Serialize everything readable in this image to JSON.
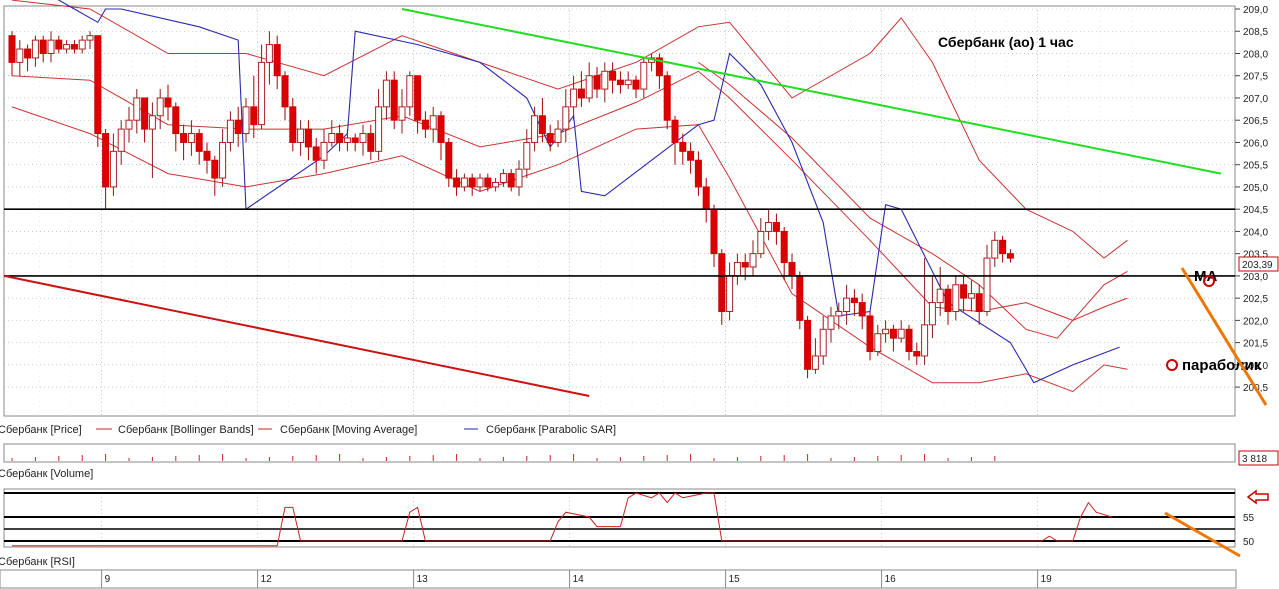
{
  "chart_data": {
    "type": "candlestick",
    "title": "Сбербанк (ао)    1 час",
    "price_panel": {
      "ylim": [
        200.3,
        209.0
      ],
      "y_ticks": [
        "209,0",
        "208,5",
        "208,0",
        "207,5",
        "207,0",
        "206,5",
        "206,0",
        "205,5",
        "205,0",
        "204,5",
        "204,0",
        "203,5",
        "203,0",
        "202,5",
        "202,0",
        "201,5",
        "201,0",
        "200,5"
      ],
      "last_price_label": "203,39",
      "legend": [
        {
          "name": "Сбербанк [Price]",
          "color": "#cc0000"
        },
        {
          "name": "Сбербанк [Bollinger Bands]",
          "color": "#cc2222"
        },
        {
          "name": "Сбербанк [Moving Average]",
          "color": "#cc2222"
        },
        {
          "name": "Сбербанк [Parabolic SAR]",
          "color": "#2222aa"
        }
      ]
    },
    "x_ticks": [
      {
        "label": "9",
        "bar": 12
      },
      {
        "label": "12",
        "bar": 32
      },
      {
        "label": "13",
        "bar": 52
      },
      {
        "label": "14",
        "bar": 72
      },
      {
        "label": "15",
        "bar": 92
      },
      {
        "label": "16",
        "bar": 112
      },
      {
        "label": "19",
        "bar": 132
      }
    ],
    "candles": [
      [
        208.4,
        207.8,
        208.5,
        207.5
      ],
      [
        207.8,
        208.1,
        208.3,
        207.5
      ],
      [
        208.1,
        207.9,
        208.2,
        207.6
      ],
      [
        207.9,
        208.3,
        208.4,
        207.7
      ],
      [
        208.3,
        208.0,
        208.4,
        207.8
      ],
      [
        208.0,
        208.3,
        208.5,
        207.8
      ],
      [
        208.3,
        208.1,
        208.4,
        208.0
      ],
      [
        208.1,
        208.2,
        208.3,
        208.0
      ],
      [
        208.2,
        208.1,
        208.3,
        208.0
      ],
      [
        208.1,
        208.3,
        208.4,
        208.0
      ],
      [
        208.3,
        208.4,
        208.5,
        208.1
      ],
      [
        208.4,
        206.2,
        208.4,
        205.9
      ],
      [
        206.2,
        205.0,
        206.3,
        204.5
      ],
      [
        205.0,
        205.8,
        206.2,
        204.8
      ],
      [
        205.8,
        206.3,
        206.5,
        205.5
      ],
      [
        206.3,
        206.5,
        206.8,
        206.0
      ],
      [
        206.5,
        207.0,
        207.2,
        206.2
      ],
      [
        207.0,
        206.3,
        207.0,
        206.0
      ],
      [
        206.3,
        206.6,
        206.9,
        205.2
      ],
      [
        206.6,
        207.0,
        207.2,
        206.3
      ],
      [
        207.0,
        206.8,
        207.3,
        206.5
      ],
      [
        206.8,
        206.2,
        206.9,
        205.8
      ],
      [
        206.2,
        206.0,
        206.4,
        205.6
      ],
      [
        206.0,
        206.2,
        206.5,
        205.7
      ],
      [
        206.2,
        205.8,
        206.3,
        205.5
      ],
      [
        205.8,
        205.6,
        206.0,
        205.3
      ],
      [
        205.6,
        205.2,
        205.7,
        204.8
      ],
      [
        205.2,
        206.0,
        206.3,
        205.0
      ],
      [
        206.0,
        206.5,
        206.7,
        205.8
      ],
      [
        206.5,
        206.2,
        206.8,
        205.9
      ],
      [
        206.2,
        206.8,
        207.0,
        206.0
      ],
      [
        206.8,
        206.4,
        207.5,
        206.1
      ],
      [
        206.4,
        207.8,
        208.2,
        206.3
      ],
      [
        207.8,
        208.2,
        208.5,
        207.3
      ],
      [
        208.2,
        207.5,
        208.4,
        207.2
      ],
      [
        207.5,
        206.8,
        207.6,
        206.5
      ],
      [
        206.8,
        206.0,
        207.0,
        205.8
      ],
      [
        206.0,
        206.3,
        206.5,
        205.7
      ],
      [
        206.3,
        205.9,
        206.5,
        205.6
      ],
      [
        205.9,
        205.6,
        206.1,
        205.3
      ],
      [
        205.6,
        206.0,
        206.3,
        205.4
      ],
      [
        206.0,
        206.2,
        206.5,
        205.9
      ],
      [
        206.2,
        206.0,
        206.4,
        205.8
      ],
      [
        206.0,
        206.1,
        206.3,
        205.8
      ],
      [
        206.1,
        206.0,
        206.2,
        205.8
      ],
      [
        206.0,
        206.2,
        206.4,
        205.7
      ],
      [
        206.2,
        205.8,
        206.4,
        205.6
      ],
      [
        205.8,
        206.8,
        207.2,
        205.6
      ],
      [
        206.8,
        207.4,
        207.6,
        206.5
      ],
      [
        207.4,
        206.5,
        207.6,
        206.3
      ],
      [
        206.5,
        206.8,
        207.2,
        206.2
      ],
      [
        206.8,
        207.5,
        207.6,
        206.6
      ],
      [
        207.5,
        206.5,
        207.5,
        206.2
      ],
      [
        206.5,
        206.3,
        206.7,
        206.1
      ],
      [
        206.3,
        206.6,
        206.8,
        206.0
      ],
      [
        206.6,
        206.0,
        206.7,
        205.6
      ],
      [
        206.0,
        205.2,
        206.1,
        205.0
      ],
      [
        205.2,
        205.0,
        205.4,
        204.8
      ],
      [
        205.0,
        205.2,
        205.3,
        204.9
      ],
      [
        205.2,
        205.0,
        205.3,
        204.8
      ],
      [
        205.0,
        205.2,
        205.3,
        204.9
      ],
      [
        205.2,
        205.0,
        205.3,
        204.9
      ],
      [
        205.0,
        205.1,
        205.2,
        204.9
      ],
      [
        205.1,
        205.3,
        205.4,
        205.0
      ],
      [
        205.3,
        205.0,
        205.4,
        204.9
      ],
      [
        205.0,
        205.4,
        205.6,
        204.8
      ],
      [
        205.4,
        206.0,
        206.3,
        205.2
      ],
      [
        206.0,
        206.6,
        206.8,
        205.8
      ],
      [
        206.6,
        206.2,
        207.0,
        206.0
      ],
      [
        206.2,
        206.0,
        206.4,
        205.8
      ],
      [
        206.0,
        206.3,
        206.5,
        205.9
      ],
      [
        206.3,
        206.8,
        207.2,
        206.0
      ],
      [
        206.8,
        207.2,
        207.5,
        206.5
      ],
      [
        207.2,
        207.0,
        207.6,
        206.8
      ],
      [
        207.0,
        207.5,
        207.8,
        206.9
      ],
      [
        207.5,
        207.2,
        207.7,
        207.0
      ],
      [
        207.2,
        207.6,
        207.8,
        206.9
      ],
      [
        207.6,
        207.4,
        207.8,
        207.1
      ],
      [
        207.4,
        207.3,
        207.6,
        207.1
      ],
      [
        207.3,
        207.4,
        207.6,
        207.2
      ],
      [
        207.4,
        207.2,
        207.5,
        207.0
      ],
      [
        207.2,
        207.8,
        207.9,
        207.0
      ],
      [
        207.8,
        207.9,
        208.0,
        207.6
      ],
      [
        207.9,
        207.5,
        208.0,
        207.2
      ],
      [
        207.5,
        206.5,
        207.6,
        206.3
      ],
      [
        206.5,
        206.0,
        206.6,
        205.5
      ],
      [
        206.0,
        205.8,
        206.2,
        205.5
      ],
      [
        205.8,
        205.6,
        206.0,
        205.3
      ],
      [
        205.6,
        205.0,
        205.8,
        204.8
      ],
      [
        205.0,
        204.5,
        205.2,
        204.2
      ],
      [
        204.5,
        203.5,
        204.6,
        203.2
      ],
      [
        203.5,
        202.2,
        203.6,
        201.9
      ],
      [
        202.2,
        203.0,
        203.3,
        202.0
      ],
      [
        203.0,
        203.3,
        203.5,
        202.8
      ],
      [
        203.3,
        203.2,
        203.5,
        202.9
      ],
      [
        203.2,
        203.5,
        203.8,
        203.0
      ],
      [
        203.5,
        204.0,
        204.3,
        203.4
      ],
      [
        204.0,
        204.2,
        204.5,
        203.8
      ],
      [
        204.2,
        204.0,
        204.4,
        203.7
      ],
      [
        204.0,
        203.3,
        204.1,
        202.9
      ],
      [
        203.3,
        203.0,
        203.5,
        202.7
      ],
      [
        203.0,
        202.0,
        203.1,
        201.8
      ],
      [
        202.0,
        200.9,
        202.1,
        200.7
      ],
      [
        200.9,
        201.2,
        201.6,
        200.8
      ],
      [
        201.2,
        201.8,
        202.1,
        201.0
      ],
      [
        201.8,
        202.1,
        202.3,
        201.5
      ],
      [
        202.1,
        202.2,
        202.4,
        201.8
      ],
      [
        202.2,
        202.5,
        202.8,
        201.9
      ],
      [
        202.5,
        202.4,
        202.7,
        202.1
      ],
      [
        202.4,
        202.1,
        202.6,
        201.8
      ],
      [
        202.1,
        201.3,
        202.2,
        201.1
      ],
      [
        201.3,
        201.7,
        201.9,
        201.2
      ],
      [
        201.7,
        201.8,
        202.0,
        201.5
      ],
      [
        201.8,
        201.6,
        201.9,
        201.3
      ],
      [
        201.6,
        201.8,
        202.0,
        201.5
      ],
      [
        201.8,
        201.3,
        201.9,
        201.1
      ],
      [
        201.3,
        201.2,
        201.5,
        201.0
      ],
      [
        201.2,
        201.9,
        203.4,
        201.0
      ],
      [
        201.9,
        202.4,
        203.0,
        201.6
      ],
      [
        202.4,
        202.7,
        203.2,
        202.1
      ],
      [
        202.7,
        202.2,
        202.8,
        201.9
      ],
      [
        202.2,
        202.8,
        203.0,
        202.0
      ],
      [
        202.8,
        202.5,
        203.0,
        202.2
      ],
      [
        202.5,
        202.6,
        202.9,
        202.2
      ],
      [
        202.6,
        202.2,
        202.8,
        201.9
      ],
      [
        202.2,
        203.4,
        203.7,
        202.1
      ],
      [
        203.4,
        203.8,
        204.0,
        203.2
      ],
      [
        203.8,
        203.5,
        203.9,
        203.3
      ],
      [
        203.5,
        203.4,
        203.6,
        203.3
      ]
    ],
    "overlays": {
      "bollinger_upper": [
        [
          0,
          209.2
        ],
        [
          10,
          209.0
        ],
        [
          20,
          208.0
        ],
        [
          30,
          208.0
        ],
        [
          40,
          207.5
        ],
        [
          50,
          208.4
        ],
        [
          60,
          207.8
        ],
        [
          70,
          207.2
        ],
        [
          80,
          207.8
        ],
        [
          88,
          208.6
        ],
        [
          92,
          208.7
        ],
        [
          100,
          207.0
        ],
        [
          110,
          208.0
        ],
        [
          114,
          208.8
        ],
        [
          118,
          207.8
        ],
        [
          124,
          205.6
        ],
        [
          130,
          204.5
        ],
        [
          136,
          204.0
        ],
        [
          140,
          203.4
        ],
        [
          143,
          203.8
        ]
      ],
      "bollinger_lower": [
        [
          0,
          206.8
        ],
        [
          10,
          206.2
        ],
        [
          20,
          205.3
        ],
        [
          30,
          205.0
        ],
        [
          40,
          205.3
        ],
        [
          50,
          205.7
        ],
        [
          60,
          204.9
        ],
        [
          70,
          205.5
        ],
        [
          80,
          206.3
        ],
        [
          88,
          206.4
        ],
        [
          92,
          205.2
        ],
        [
          100,
          202.6
        ],
        [
          110,
          201.4
        ],
        [
          118,
          200.6
        ],
        [
          124,
          200.6
        ],
        [
          130,
          200.8
        ],
        [
          136,
          200.4
        ],
        [
          140,
          201.0
        ],
        [
          143,
          200.9
        ]
      ],
      "moving_average": [
        [
          0,
          207.5
        ],
        [
          10,
          207.4
        ],
        [
          20,
          206.4
        ],
        [
          30,
          206.3
        ],
        [
          40,
          206.3
        ],
        [
          50,
          206.6
        ],
        [
          60,
          205.9
        ],
        [
          70,
          206.2
        ],
        [
          80,
          206.9
        ],
        [
          88,
          207.6
        ],
        [
          92,
          207.0
        ],
        [
          100,
          205.6
        ],
        [
          110,
          203.8
        ],
        [
          118,
          202.3
        ],
        [
          124,
          202.2
        ],
        [
          130,
          202.4
        ],
        [
          136,
          202.0
        ],
        [
          140,
          202.3
        ],
        [
          143,
          202.5
        ]
      ],
      "bollinger_mid2": [
        [
          88,
          207.8
        ],
        [
          92,
          207.3
        ],
        [
          100,
          206.1
        ],
        [
          110,
          204.3
        ],
        [
          118,
          203.5
        ],
        [
          124,
          202.8
        ],
        [
          130,
          201.8
        ],
        [
          134,
          201.6
        ],
        [
          140,
          202.8
        ],
        [
          143,
          203.1
        ]
      ],
      "parabolic_sar": [
        [
          0,
          209.8
        ],
        [
          8,
          209.0
        ],
        [
          11,
          208.7
        ],
        [
          12,
          209.0
        ],
        [
          14,
          209.0
        ],
        [
          24,
          208.6
        ],
        [
          29,
          208.3
        ],
        [
          30,
          204.5
        ],
        [
          40,
          205.7
        ],
        [
          43,
          206.2
        ],
        [
          44,
          208.5
        ],
        [
          52,
          208.2
        ],
        [
          60,
          207.8
        ],
        [
          66,
          207.0
        ],
        [
          69,
          205.9
        ],
        [
          72,
          206.6
        ],
        [
          73,
          204.9
        ],
        [
          76,
          204.8
        ],
        [
          88,
          206.4
        ],
        [
          90,
          206.5
        ],
        [
          92,
          208.0
        ],
        [
          96,
          207.3
        ],
        [
          100,
          206.0
        ],
        [
          104,
          204.2
        ],
        [
          106,
          202.1
        ],
        [
          110,
          202.2
        ],
        [
          112,
          204.6
        ],
        [
          114,
          204.5
        ],
        [
          120,
          202.4
        ],
        [
          128,
          201.5
        ],
        [
          131,
          200.6
        ],
        [
          136,
          201.0
        ],
        [
          142,
          201.4
        ]
      ]
    },
    "trend_lines": [
      {
        "name": "resistance-upper",
        "color": "#22dd22",
        "points": [
          [
            50,
            209.0
          ],
          [
            155,
            205.3
          ]
        ]
      },
      {
        "name": "resistance-lower",
        "color": "#cc1111",
        "points": [
          [
            -1,
            203.0
          ],
          [
            74,
            200.3
          ]
        ]
      }
    ],
    "horizontal_lines": [
      204.5,
      203.0
    ],
    "annotations": {
      "ma_label": "MA",
      "parabolic_label": "параболик"
    },
    "volume_panel": {
      "label": "Сбербанк [Volume]",
      "value_label": "3 818"
    },
    "rsi_panel": {
      "label": "Сбербанк [RSI]",
      "y_ticks": [
        "55",
        "50"
      ],
      "values": [
        [
          0,
          49
        ],
        [
          34,
          49
        ],
        [
          35,
          57
        ],
        [
          36,
          57
        ],
        [
          37,
          50
        ],
        [
          50,
          50
        ],
        [
          51,
          56
        ],
        [
          52,
          57
        ],
        [
          53,
          50
        ],
        [
          69,
          50
        ],
        [
          70,
          54
        ],
        [
          71,
          56
        ],
        [
          74,
          55
        ],
        [
          75,
          53
        ],
        [
          78,
          53
        ],
        [
          79,
          59
        ],
        [
          80,
          60
        ],
        [
          82,
          59
        ],
        [
          83,
          60
        ],
        [
          84,
          58
        ],
        [
          85,
          60
        ],
        [
          86,
          59
        ],
        [
          89,
          60
        ],
        [
          90,
          60
        ],
        [
          91,
          50
        ],
        [
          132,
          50
        ],
        [
          133,
          51
        ],
        [
          134,
          50
        ],
        [
          136,
          50
        ],
        [
          137,
          55
        ],
        [
          138,
          58
        ],
        [
          139,
          56
        ],
        [
          141,
          55
        ]
      ]
    }
  }
}
